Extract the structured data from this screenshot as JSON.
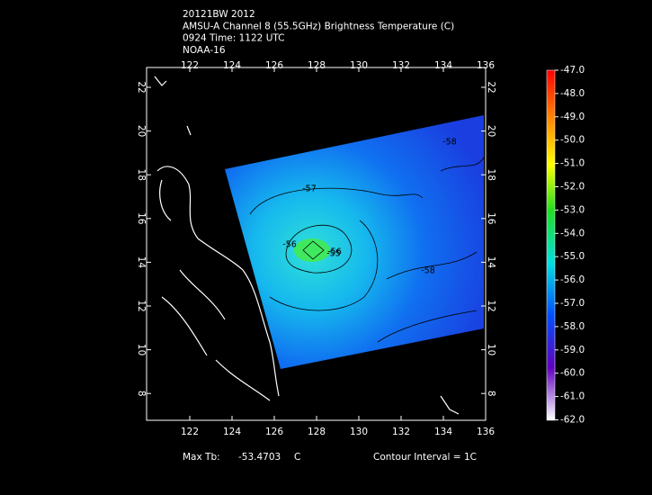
{
  "header": {
    "lines": [
      "20121BW 2012",
      "AMSU-A Channel 8 (55.5GHz) Brightness Temperature (C)",
      "0924 Time: 1122 UTC",
      "NOAA-16"
    ]
  },
  "map": {
    "lon_ticks": [
      "122",
      "124",
      "126",
      "128",
      "130",
      "132",
      "134",
      "136"
    ],
    "lat_ticks": [
      "22",
      "20",
      "18",
      "16",
      "14",
      "12",
      "10",
      "8"
    ],
    "contour_labels": [
      "-57",
      "-56",
      "-55",
      "-56",
      "-58",
      "-58"
    ]
  },
  "colorbar": {
    "labels": [
      "-47.0",
      "-48.0",
      "-49.0",
      "-50.0",
      "-51.0",
      "-52.0",
      "-53.0",
      "-54.0",
      "-55.0",
      "-56.0",
      "-57.0",
      "-58.0",
      "-59.0",
      "-60.0",
      "-61.0",
      "-62.0"
    ]
  },
  "footer": {
    "max_label": "Max Tb:",
    "max_value": "-53.4703",
    "unit": "C",
    "contour_interval": "Contour Interval = 1C"
  }
}
